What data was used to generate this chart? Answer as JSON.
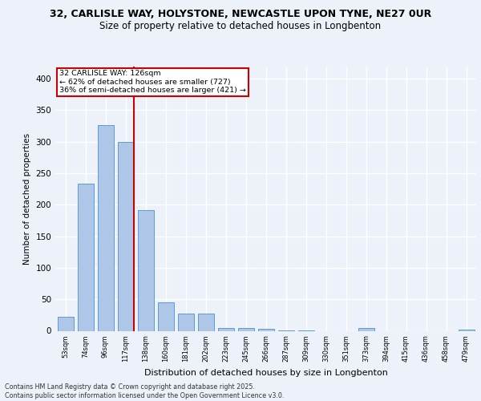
{
  "title_line1": "32, CARLISLE WAY, HOLYSTONE, NEWCASTLE UPON TYNE, NE27 0UR",
  "title_line2": "Size of property relative to detached houses in Longbenton",
  "xlabel": "Distribution of detached houses by size in Longbenton",
  "ylabel": "Number of detached properties",
  "categories": [
    "53sqm",
    "74sqm",
    "96sqm",
    "117sqm",
    "138sqm",
    "160sqm",
    "181sqm",
    "202sqm",
    "223sqm",
    "245sqm",
    "266sqm",
    "287sqm",
    "309sqm",
    "330sqm",
    "351sqm",
    "373sqm",
    "394sqm",
    "415sqm",
    "436sqm",
    "458sqm",
    "479sqm"
  ],
  "values": [
    22,
    233,
    327,
    300,
    191,
    45,
    27,
    28,
    5,
    5,
    3,
    1,
    1,
    0,
    0,
    4,
    0,
    0,
    0,
    0,
    2
  ],
  "bar_color": "#aec6e8",
  "bar_edge_color": "#5b9bd5",
  "bar_width": 0.8,
  "ylim": [
    0,
    420
  ],
  "yticks": [
    0,
    50,
    100,
    150,
    200,
    250,
    300,
    350,
    400
  ],
  "annotation_line1": "32 CARLISLE WAY: 126sqm",
  "annotation_line2": "← 62% of detached houses are smaller (727)",
  "annotation_line3": "36% of semi-detached houses are larger (421) →",
  "annotation_box_color": "#ffffff",
  "annotation_box_edge_color": "#cc0000",
  "vline_color": "#cc0000",
  "background_color": "#edf1f9",
  "grid_color": "#ffffff",
  "footer_line1": "Contains HM Land Registry data © Crown copyright and database right 2025.",
  "footer_line2": "Contains public sector information licensed under the Open Government Licence v3.0."
}
